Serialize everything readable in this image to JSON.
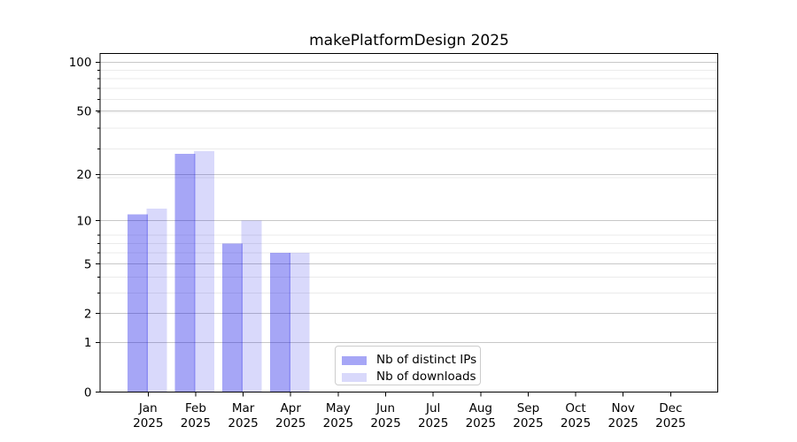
{
  "chart_data": {
    "type": "bar",
    "title": "makePlatformDesign 2025",
    "categories": [
      "Jan 2025",
      "Feb 2025",
      "Mar 2025",
      "Apr 2025",
      "May 2025",
      "Jun 2025",
      "Jul 2025",
      "Aug 2025",
      "Sep 2025",
      "Oct 2025",
      "Nov 2025",
      "Dec 2025"
    ],
    "x_tick_months": [
      "Jan",
      "Feb",
      "Mar",
      "Apr",
      "May",
      "Jun",
      "Jul",
      "Aug",
      "Sep",
      "Oct",
      "Nov",
      "Dec"
    ],
    "x_tick_year": "2025",
    "series": [
      {
        "name": "Nb of distinct IPs",
        "color": "rgba(0,0,230,0.35)",
        "values": [
          11,
          27,
          7,
          6,
          0,
          0,
          0,
          0,
          0,
          0,
          0,
          0
        ]
      },
      {
        "name": "Nb of downloads",
        "color": "rgba(0,0,230,0.15)",
        "values": [
          12,
          28,
          10,
          6,
          0,
          0,
          0,
          0,
          0,
          0,
          0,
          0
        ]
      }
    ],
    "yscale": "log1p",
    "ylim": [
      0,
      113
    ],
    "y_major_ticks": [
      0,
      1,
      2,
      5,
      10,
      20,
      50,
      100
    ],
    "y_minor_gridlines": [
      3,
      4,
      6,
      7,
      8,
      19,
      29,
      39,
      49,
      59,
      69,
      79,
      89
    ],
    "grid": "both",
    "legend_position": "lower-center",
    "colors": {
      "major_grid": "#c8c8c8",
      "minor_grid": "#ebebeb",
      "axis": "#000000",
      "text": "#000000",
      "background": "#ffffff"
    }
  }
}
